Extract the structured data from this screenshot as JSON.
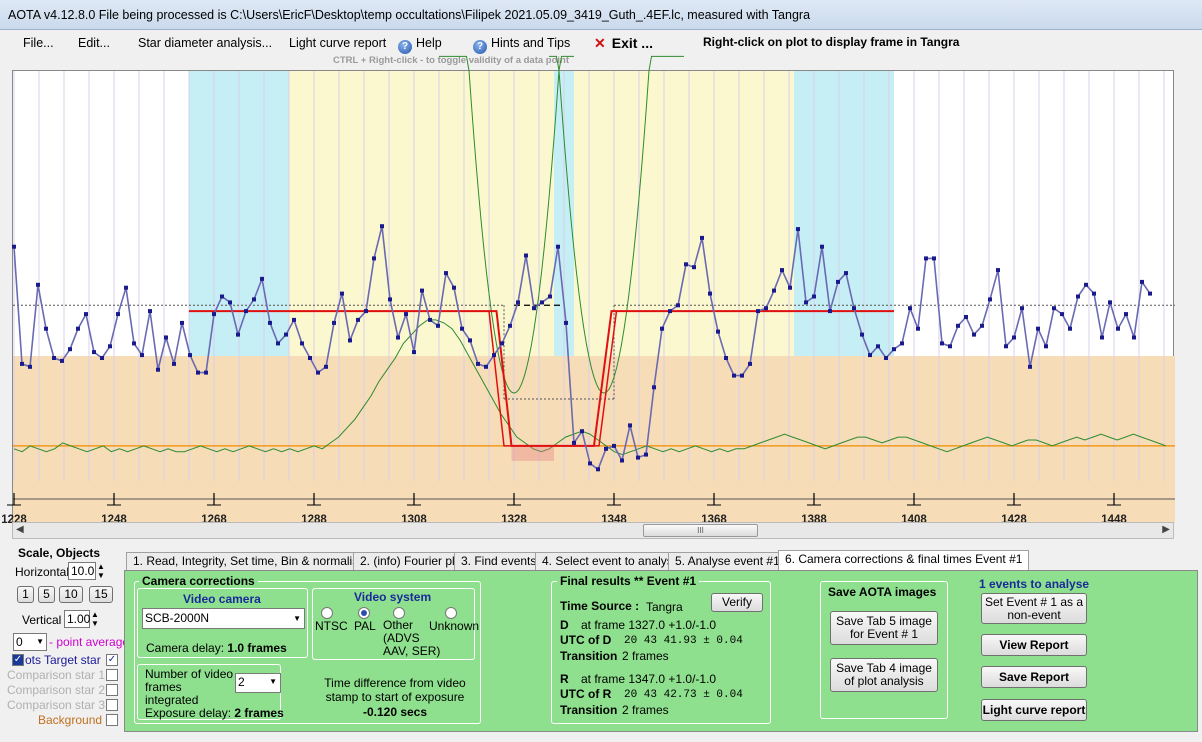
{
  "window": {
    "title": "AOTA v4.12.8.0    File being processed is C:\\Users\\EricF\\Desktop\\temp occultations\\Filipek 2021.05.09_3419_Guth_.4EF.lc, measured with Tangra"
  },
  "menu": {
    "file": "File...",
    "edit": "Edit...",
    "star_diameter": "Star diameter analysis...",
    "light_curve_report": "Light curve report",
    "help": "Help",
    "hints": "Hints and Tips",
    "exit": "Exit ...",
    "exit_x": "✕",
    "hint_text": "CTRL + Right-click  -  to toggle validity of a data point",
    "right_click_info": "Right-click on plot to display frame in Tangra"
  },
  "plot": {
    "x_ticks": [
      "1228",
      "1248",
      "1268",
      "1288",
      "1308",
      "1328",
      "1348",
      "1368",
      "1388",
      "1408",
      "1428",
      "1448"
    ],
    "x_tick_values": [
      1228,
      1248,
      1268,
      1288,
      1308,
      1328,
      1348,
      1368,
      1388,
      1408,
      1428,
      1448
    ],
    "x_range": [
      1227.8,
      1460.2
    ],
    "y_range": [
      -0.05,
      1.35
    ],
    "points_x_start": 1228,
    "points": [
      0.75,
      0.35,
      0.34,
      0.62,
      0.47,
      0.37,
      0.36,
      0.4,
      0.47,
      0.52,
      0.39,
      0.37,
      0.41,
      0.52,
      0.61,
      0.42,
      0.38,
      0.53,
      0.33,
      0.44,
      0.35,
      0.49,
      0.38,
      0.32,
      0.32,
      0.52,
      0.58,
      0.56,
      0.45,
      0.53,
      0.57,
      0.64,
      0.49,
      0.42,
      0.45,
      0.5,
      0.42,
      0.37,
      0.32,
      0.34,
      0.49,
      0.59,
      0.43,
      0.5,
      0.53,
      0.71,
      0.82,
      0.57,
      0.44,
      0.52,
      0.39,
      0.6,
      0.5,
      0.48,
      0.66,
      0.61,
      0.47,
      0.43,
      0.35,
      0.34,
      0.38,
      0.42,
      0.48,
      0.56,
      0.72,
      0.54,
      0.56,
      0.58,
      0.75,
      0.49,
      0.08,
      0.12,
      0.01,
      -0.01,
      0.06,
      0.07,
      0.02,
      0.14,
      0.03,
      0.04,
      0.27,
      0.47,
      0.53,
      0.55,
      0.69,
      0.68,
      0.78,
      0.59,
      0.46,
      0.37,
      0.31,
      0.31,
      0.35,
      0.53,
      0.54,
      0.6,
      0.67,
      0.61,
      0.81,
      0.56,
      0.58,
      0.75,
      0.53,
      0.63,
      0.66,
      0.54,
      0.45,
      0.38,
      0.41,
      0.37,
      0.4,
      0.42,
      0.54,
      0.47,
      0.71,
      0.71,
      0.42,
      0.41,
      0.48,
      0.51,
      0.45,
      0.48,
      0.57,
      0.67,
      0.41,
      0.44,
      0.54,
      0.34,
      0.47,
      0.41,
      0.54,
      0.52,
      0.47,
      0.58,
      0.62,
      0.59,
      0.44,
      0.56,
      0.47,
      0.52,
      0.44,
      0.63,
      0.59
    ],
    "baseline": 0.53,
    "bottom_level": 0.07,
    "d_frame": 1327.0,
    "r_frame": 1347.0,
    "colors": {
      "cyan": "#c6eef5",
      "yellow": "#fbf7cf",
      "tan": "#f6dcb7",
      "data": "#6a6ab4",
      "dots": "#1a1a8c",
      "model": "#e01010",
      "green": "#2e8b2e",
      "orange": "#f08c00"
    }
  },
  "left": {
    "scale_title": "Scale,  Objects",
    "horizontal_label": "Horizontal",
    "horizontal_value": "10.0",
    "scale_buttons": [
      "1",
      "5",
      "10",
      "15"
    ],
    "vertical_label": "Vertical",
    "vertical_value": "1.00",
    "point_avg_value": "0",
    "point_avg_label": "- point average",
    "dots_label": "ots",
    "target_star": "Target star",
    "comp1": "Comparison star 1",
    "comp2": "Comparison star 2",
    "comp3": "Comparison star 3",
    "background": "Background"
  },
  "tabs": [
    "1.  Read, Integrity, Set time, Bin & normalise",
    "2. (info)  Fourier plot",
    "3. Find events",
    "4. Select event to analyse",
    "5. Analyse event #1",
    "6. Camera corrections & final times Event #1"
  ],
  "camera": {
    "group_title": "Camera corrections",
    "video_camera_title": "Video camera",
    "camera_value": "SCB-2000N",
    "camera_delay_label": "Camera delay:",
    "camera_delay_value": "1.0 frames",
    "video_system_title": "Video system",
    "ntsc": "NTSC",
    "pal": "PAL",
    "other": "Other\n(ADVS\nAAV, SER)",
    "unknown": "Unknown",
    "frames_label": "Number of video frames integrated",
    "frames_value": "2",
    "exposure_delay_label": "Exposure delay:",
    "exposure_delay_value": "2 frames",
    "time_diff_label": "Time difference from video stamp to start of exposure",
    "time_diff_value": "-0.120 secs"
  },
  "final": {
    "title": "Final results  **  Event #1",
    "time_source_label": "Time Source :",
    "time_source_value": "Tangra",
    "verify": "Verify",
    "d_label": "D",
    "d_frame": "at frame 1327.0  +1.0/-1.0",
    "utc_d_label": "UTC of D",
    "utc_d_value": "20 43 41.93  ± 0.04",
    "trans_label": "Transition",
    "d_trans_value": "2 frames",
    "r_label": "R",
    "r_frame": "at frame 1347.0  +1.0/-1.0",
    "utc_r_label": "UTC of R",
    "utc_r_value": "20 43 42.73  ± 0.04",
    "r_trans_value": "2 frames"
  },
  "save": {
    "title": "Save AOTA images",
    "tab5": "Save Tab 5 image for Event # 1",
    "tab4": "Save Tab 4 image of plot analysis"
  },
  "right": {
    "events_to_analyse": "1  events to analyse",
    "set_event": "Set Event # 1 as a non-event",
    "view_report": "View Report",
    "save_report": "Save Report",
    "lc_report": "Light curve report"
  }
}
